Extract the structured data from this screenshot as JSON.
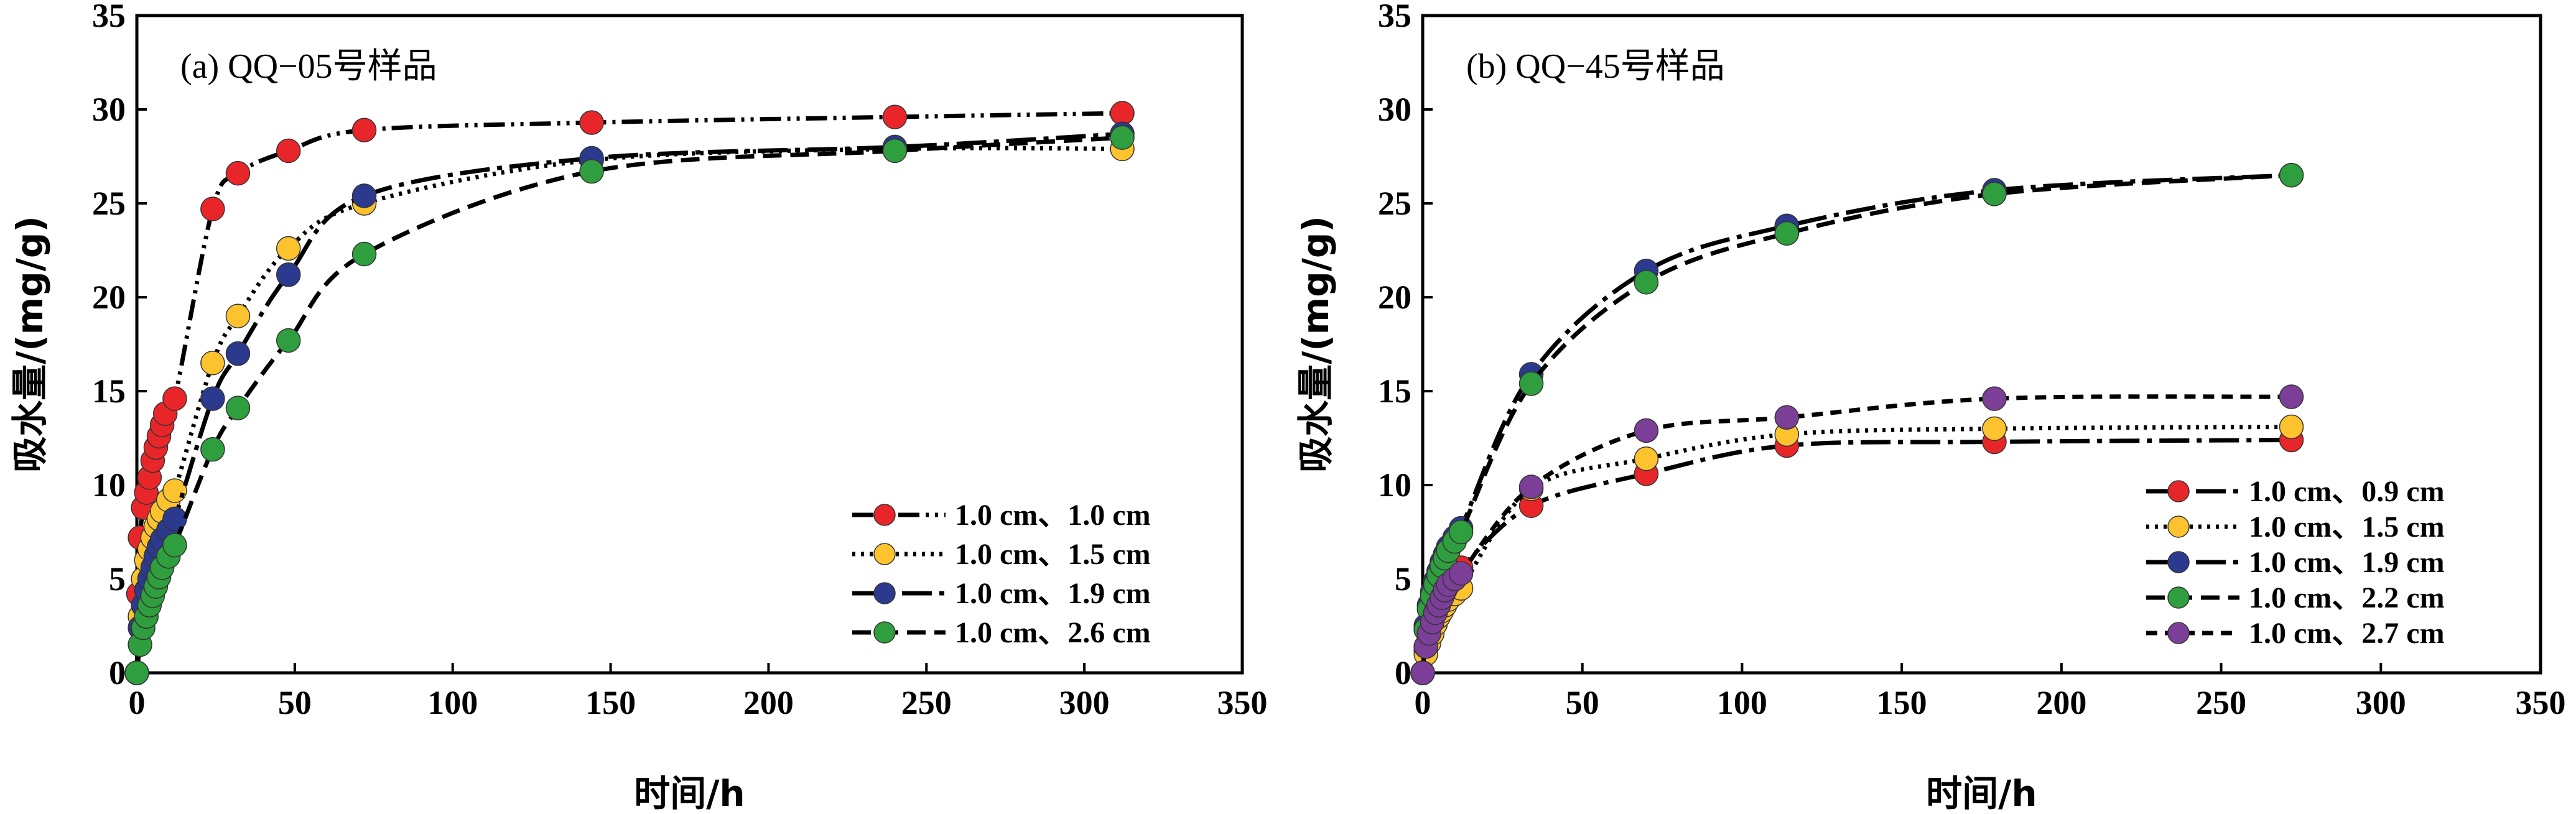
{
  "chart_data": [
    {
      "type": "scatter",
      "title": "(a) QQ−05号样品",
      "xlabel": "时间/h",
      "ylabel": "吸水量/(mg/g)",
      "xlim": [
        0,
        350
      ],
      "ylim": [
        0,
        35
      ],
      "xticks": [
        "0",
        "50",
        "100",
        "150",
        "200",
        "250",
        "300",
        "350"
      ],
      "yticks": [
        "0",
        "5",
        "10",
        "15",
        "20",
        "25",
        "30",
        "35"
      ],
      "legend_position": "bottom-right",
      "grid": false,
      "series": [
        {
          "name": "1.0 cm、1.0 cm",
          "color": "#e8262a",
          "line_style": "dash-dot-dot",
          "points": [
            [
              0,
              0
            ],
            [
              0.5,
              4.2
            ],
            [
              1,
              7.2
            ],
            [
              2,
              8.8
            ],
            [
              3,
              9.6
            ],
            [
              4,
              10.4
            ],
            [
              5,
              11.3
            ],
            [
              6,
              12.0
            ],
            [
              7,
              12.6
            ],
            [
              8,
              13.2
            ],
            [
              9,
              13.8
            ],
            [
              12,
              14.6
            ],
            [
              24,
              24.7
            ],
            [
              32,
              26.6
            ],
            [
              48,
              27.8
            ],
            [
              72,
              28.9
            ],
            [
              144,
              29.3
            ],
            [
              240,
              29.6
            ],
            [
              312,
              29.8
            ]
          ]
        },
        {
          "name": "1.0 cm、1.5 cm",
          "color": "#fcc32e",
          "line_style": "dotted",
          "points": [
            [
              0,
              0
            ],
            [
              1,
              3.0
            ],
            [
              2,
              5.0
            ],
            [
              3,
              6.0
            ],
            [
              4,
              6.6
            ],
            [
              5,
              7.2
            ],
            [
              6,
              7.8
            ],
            [
              7,
              8.2
            ],
            [
              8,
              8.6
            ],
            [
              10,
              9.2
            ],
            [
              12,
              9.7
            ],
            [
              24,
              16.5
            ],
            [
              32,
              19.0
            ],
            [
              48,
              22.6
            ],
            [
              72,
              25.0
            ],
            [
              144,
              27.3
            ],
            [
              240,
              27.9
            ],
            [
              312,
              27.9
            ]
          ]
        },
        {
          "name": "1.0 cm、1.9 cm",
          "color": "#2b3a8f",
          "line_style": "long-dash-dot",
          "points": [
            [
              0,
              0
            ],
            [
              1,
              2.4
            ],
            [
              2,
              3.6
            ],
            [
              3,
              4.4
            ],
            [
              4,
              5.0
            ],
            [
              5,
              5.6
            ],
            [
              6,
              6.2
            ],
            [
              7,
              6.7
            ],
            [
              8,
              7.1
            ],
            [
              10,
              7.6
            ],
            [
              12,
              8.2
            ],
            [
              24,
              14.6
            ],
            [
              32,
              17.0
            ],
            [
              48,
              21.2
            ],
            [
              72,
              25.4
            ],
            [
              144,
              27.4
            ],
            [
              240,
              28.0
            ],
            [
              312,
              28.7
            ]
          ]
        },
        {
          "name": "1.0 cm、2.6 cm",
          "color": "#2e9e3e",
          "line_style": "dashed",
          "points": [
            [
              0,
              0
            ],
            [
              1,
              1.5
            ],
            [
              2,
              2.4
            ],
            [
              3,
              3.0
            ],
            [
              4,
              3.6
            ],
            [
              5,
              4.1
            ],
            [
              6,
              4.6
            ],
            [
              7,
              5.1
            ],
            [
              8,
              5.6
            ],
            [
              10,
              6.2
            ],
            [
              12,
              6.8
            ],
            [
              24,
              11.9
            ],
            [
              32,
              14.1
            ],
            [
              48,
              17.7
            ],
            [
              72,
              22.3
            ],
            [
              144,
              26.7
            ],
            [
              240,
              27.8
            ],
            [
              312,
              28.5
            ]
          ]
        }
      ]
    },
    {
      "type": "scatter",
      "title": "(b) QQ−45号样品",
      "xlabel": "时间/h",
      "ylabel": "吸水量/(mg/g)",
      "xlim": [
        0,
        350
      ],
      "ylim": [
        0,
        35
      ],
      "xticks": [
        "0",
        "50",
        "100",
        "150",
        "200",
        "250",
        "300",
        "350"
      ],
      "yticks": [
        "0",
        "5",
        "10",
        "15",
        "20",
        "25",
        "30",
        "35"
      ],
      "legend_position": "bottom-right",
      "grid": false,
      "series": [
        {
          "name": "1.0 cm、0.9 cm",
          "color": "#e8262a",
          "line_style": "long-dash-dot",
          "points": [
            [
              0,
              0
            ],
            [
              1,
              1.2
            ],
            [
              2,
              1.9
            ],
            [
              3,
              2.5
            ],
            [
              4,
              3.0
            ],
            [
              5,
              3.5
            ],
            [
              6,
              4.0
            ],
            [
              7,
              4.4
            ],
            [
              8,
              4.8
            ],
            [
              10,
              5.2
            ],
            [
              12,
              5.6
            ],
            [
              34,
              8.9
            ],
            [
              70,
              10.6
            ],
            [
              114,
              12.1
            ],
            [
              179,
              12.3
            ],
            [
              272,
              12.4
            ]
          ]
        },
        {
          "name": "1.0 cm、1.5 cm",
          "color": "#fcc32e",
          "line_style": "dotted",
          "points": [
            [
              0,
              0
            ],
            [
              1,
              1.0
            ],
            [
              2,
              1.6
            ],
            [
              3,
              2.1
            ],
            [
              4,
              2.6
            ],
            [
              5,
              3.0
            ],
            [
              6,
              3.3
            ],
            [
              7,
              3.6
            ],
            [
              8,
              3.9
            ],
            [
              10,
              4.2
            ],
            [
              12,
              4.5
            ],
            [
              34,
              9.8
            ],
            [
              70,
              11.4
            ],
            [
              114,
              12.7
            ],
            [
              179,
              13.0
            ],
            [
              272,
              13.1
            ]
          ]
        },
        {
          "name": "1.0 cm、1.9 cm",
          "color": "#2b3a8f",
          "line_style": "long-dash-dot",
          "points": [
            [
              0,
              0
            ],
            [
              1,
              2.5
            ],
            [
              2,
              3.6
            ],
            [
              3,
              4.3
            ],
            [
              4,
              4.9
            ],
            [
              5,
              5.4
            ],
            [
              6,
              5.9
            ],
            [
              7,
              6.3
            ],
            [
              8,
              6.7
            ],
            [
              10,
              7.2
            ],
            [
              12,
              7.7
            ],
            [
              34,
              15.9
            ],
            [
              70,
              21.4
            ],
            [
              114,
              23.8
            ],
            [
              179,
              25.7
            ],
            [
              272,
              26.5
            ]
          ]
        },
        {
          "name": "1.0 cm、2.2 cm",
          "color": "#2e9e3e",
          "line_style": "dashed",
          "points": [
            [
              0,
              0
            ],
            [
              1,
              2.3
            ],
            [
              2,
              3.4
            ],
            [
              3,
              4.1
            ],
            [
              4,
              4.7
            ],
            [
              5,
              5.2
            ],
            [
              6,
              5.7
            ],
            [
              7,
              6.1
            ],
            [
              8,
              6.5
            ],
            [
              10,
              7.0
            ],
            [
              12,
              7.5
            ],
            [
              34,
              15.4
            ],
            [
              70,
              20.8
            ],
            [
              114,
              23.4
            ],
            [
              179,
              25.5
            ],
            [
              272,
              26.5
            ]
          ]
        },
        {
          "name": "1.0 cm、2.7 cm",
          "color": "#7b3f98",
          "line_style": "short-dash",
          "points": [
            [
              0,
              0
            ],
            [
              1,
              1.4
            ],
            [
              2,
              2.1
            ],
            [
              3,
              2.7
            ],
            [
              4,
              3.2
            ],
            [
              5,
              3.6
            ],
            [
              6,
              4.0
            ],
            [
              7,
              4.4
            ],
            [
              8,
              4.7
            ],
            [
              10,
              5.0
            ],
            [
              12,
              5.3
            ],
            [
              34,
              9.9
            ],
            [
              70,
              12.9
            ],
            [
              114,
              13.6
            ],
            [
              179,
              14.6
            ],
            [
              272,
              14.7
            ]
          ]
        }
      ]
    }
  ]
}
